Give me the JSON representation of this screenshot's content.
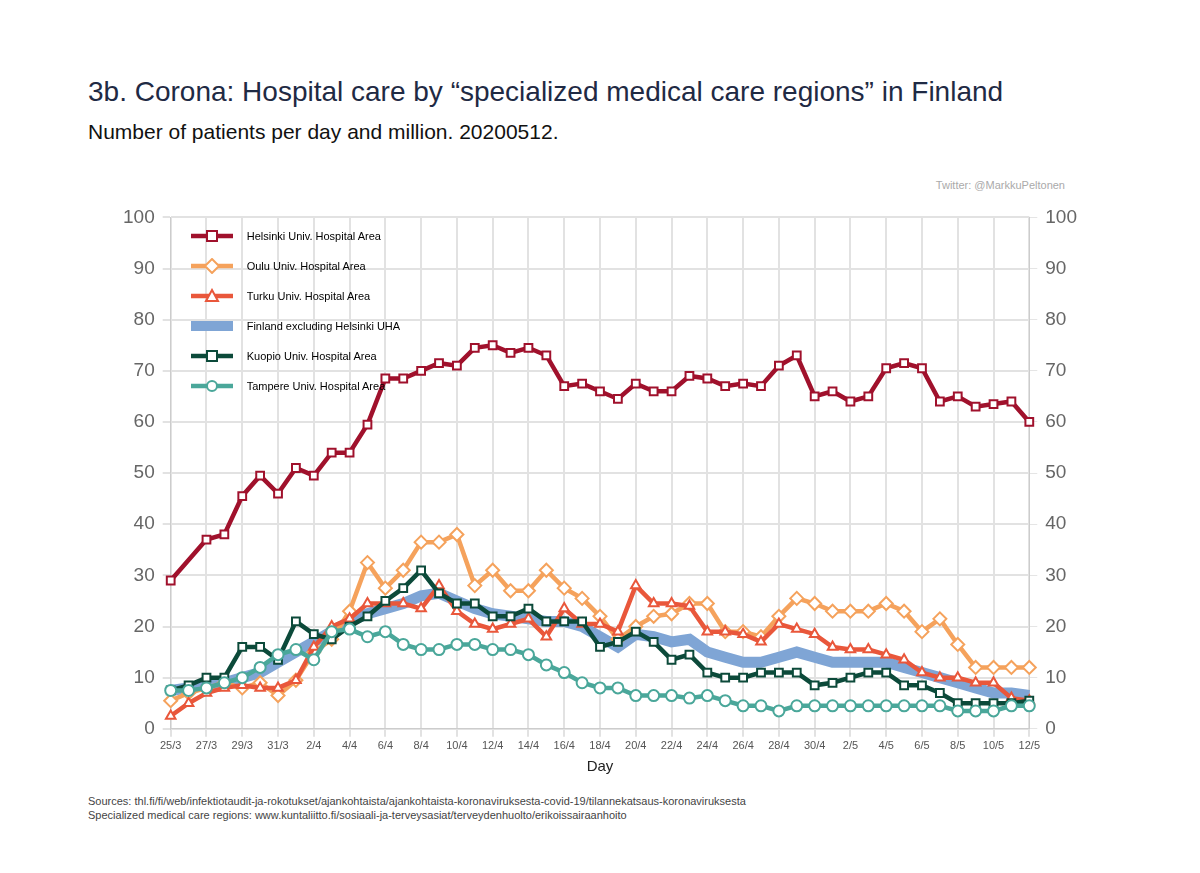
{
  "chart_data": {
    "type": "line",
    "title": "3b. Corona: Hospital care by “specialized medical care regions” in Finland",
    "subtitle": "Number of patients per day and million. 20200512.",
    "annotation": "Twitter: @MarkkuPeltonen",
    "x_label": "Day",
    "notes": [
      "Sources: thl.fi/fi/web/infektiotaudit-ja-rokotukset/ajankohtaista/ajankohtaista-koronaviruksesta-covid-19/tilannekatsaus-koronaviruksesta",
      "Specialized medical care regions: www.kuntaliitto.fi/sosiaali-ja-terveysasiat/terveydenhuolto/erikoissairaanhoito"
    ],
    "categories": [
      "25/3",
      null,
      "27/3",
      null,
      "29/3",
      null,
      "31/3",
      null,
      "2/4",
      null,
      "4/4",
      null,
      "6/4",
      null,
      "8/4",
      null,
      "10/4",
      null,
      "12/4",
      null,
      "14/4",
      null,
      "16/4",
      null,
      "18/4",
      null,
      "20/4",
      null,
      "22/4",
      null,
      "24/4",
      null,
      "26/4",
      null,
      "28/4",
      null,
      "30/4",
      null,
      "2/5",
      null,
      "4/5",
      null,
      "6/5",
      null,
      "8/5",
      null,
      "10/5",
      null,
      "12/5"
    ],
    "series": [
      {
        "name": "Helsinki Univ. Hospital Area",
        "color": "#a0112c",
        "marker": "square",
        "values": [
          29,
          null,
          37,
          38,
          45.5,
          49.5,
          46,
          51,
          49.5,
          54,
          54,
          59.5,
          68.5,
          68.5,
          70,
          71.5,
          71,
          74.5,
          75,
          73.5,
          74.5,
          73,
          67,
          67.5,
          66,
          64.5,
          67.5,
          66,
          66,
          69,
          68.5,
          67,
          67.5,
          67,
          71,
          73,
          65,
          66,
          64,
          65,
          70.5,
          71.5,
          70.5,
          64,
          65,
          63,
          63.5,
          64,
          60
        ]
      },
      {
        "name": "Oulu Univ. Hospital Area",
        "color": "#f5a25c",
        "marker": "diamond",
        "values": [
          5.5,
          7,
          8,
          9,
          8,
          9,
          6.5,
          9.5,
          15,
          17.5,
          23,
          32.5,
          27.5,
          31,
          36.5,
          36.5,
          38,
          28,
          31,
          27,
          27,
          31,
          27.5,
          25.5,
          22,
          17.5,
          20,
          22,
          22.5,
          24.5,
          24.5,
          19,
          19,
          18,
          22,
          25.5,
          24.5,
          23,
          23,
          23,
          24.5,
          23,
          19,
          21.5,
          16.5,
          12,
          12,
          12,
          12
        ]
      },
      {
        "name": "Turku Univ. Hospital Area",
        "color": "#e9573b",
        "marker": "triangle",
        "values": [
          2.5,
          5,
          7,
          8,
          8.5,
          8,
          8,
          9.5,
          16,
          20,
          21.5,
          24.5,
          24.5,
          24.5,
          23.5,
          28,
          23,
          20.5,
          19.5,
          20.5,
          21.5,
          18,
          23.5,
          20.5,
          20.5,
          19,
          28,
          24.5,
          24.5,
          24,
          19,
          19,
          18.5,
          17,
          20.5,
          19.5,
          18.5,
          16,
          15.5,
          15.5,
          14.5,
          13.5,
          11,
          10,
          10,
          9,
          9,
          6,
          5.5
        ]
      },
      {
        "name": "Finland excluding Helsinki UHA",
        "color": "#7fa5d5",
        "marker": "none",
        "values": [
          7.5,
          8,
          8.5,
          9,
          10,
          11,
          13,
          15,
          17,
          19,
          21,
          22.5,
          23.5,
          24.5,
          26,
          26.5,
          25,
          23.5,
          22.5,
          22,
          21.5,
          21,
          21,
          20,
          18,
          16,
          18.5,
          18,
          17,
          17.5,
          15,
          14,
          13,
          13,
          14,
          15,
          14,
          13,
          13,
          13,
          13,
          12,
          11,
          10,
          9,
          8,
          7,
          7,
          6.5
        ]
      },
      {
        "name": "Kuopio Univ. Hospital Area",
        "color": "#0c4a3a",
        "marker": "square",
        "values": [
          7.5,
          8.5,
          10,
          10,
          16,
          16,
          13.5,
          21,
          18.5,
          17.5,
          20,
          22,
          25,
          27.5,
          31,
          26.5,
          24.5,
          24.5,
          22,
          22,
          23.5,
          21,
          21,
          21,
          16,
          17,
          19,
          17,
          13.5,
          14.5,
          11,
          10,
          10,
          11,
          11,
          11,
          8.5,
          9,
          10,
          11,
          11,
          8.5,
          8.5,
          7,
          5,
          5,
          5,
          5,
          5.5
        ]
      },
      {
        "name": "Tampere Univ. Hospital Area",
        "color": "#4aa79a",
        "marker": "circle",
        "values": [
          7.5,
          7.5,
          8,
          9,
          10,
          12,
          14.5,
          15.5,
          13.5,
          19,
          19.5,
          18,
          19,
          16.5,
          15.5,
          15.5,
          16.5,
          16.5,
          15.5,
          15.5,
          14.5,
          12.5,
          11,
          9,
          8,
          8,
          6.5,
          6.5,
          6.5,
          6,
          6.5,
          5.5,
          4.5,
          4.5,
          3.5,
          4.5,
          4.5,
          4.5,
          4.5,
          4.5,
          4.5,
          4.5,
          4.5,
          4.5,
          3.5,
          3.5,
          3.5,
          4.5,
          4.5
        ]
      }
    ],
    "ylim": [
      0,
      100
    ],
    "yticks": [
      0,
      10,
      20,
      30,
      40,
      50,
      60,
      70,
      80,
      90,
      100
    ],
    "y2lim": [
      0,
      100
    ],
    "y2ticks": [
      0,
      10,
      20,
      30,
      40,
      50,
      60,
      70,
      80,
      90,
      100
    ],
    "grid": true,
    "legend": "upper left"
  }
}
